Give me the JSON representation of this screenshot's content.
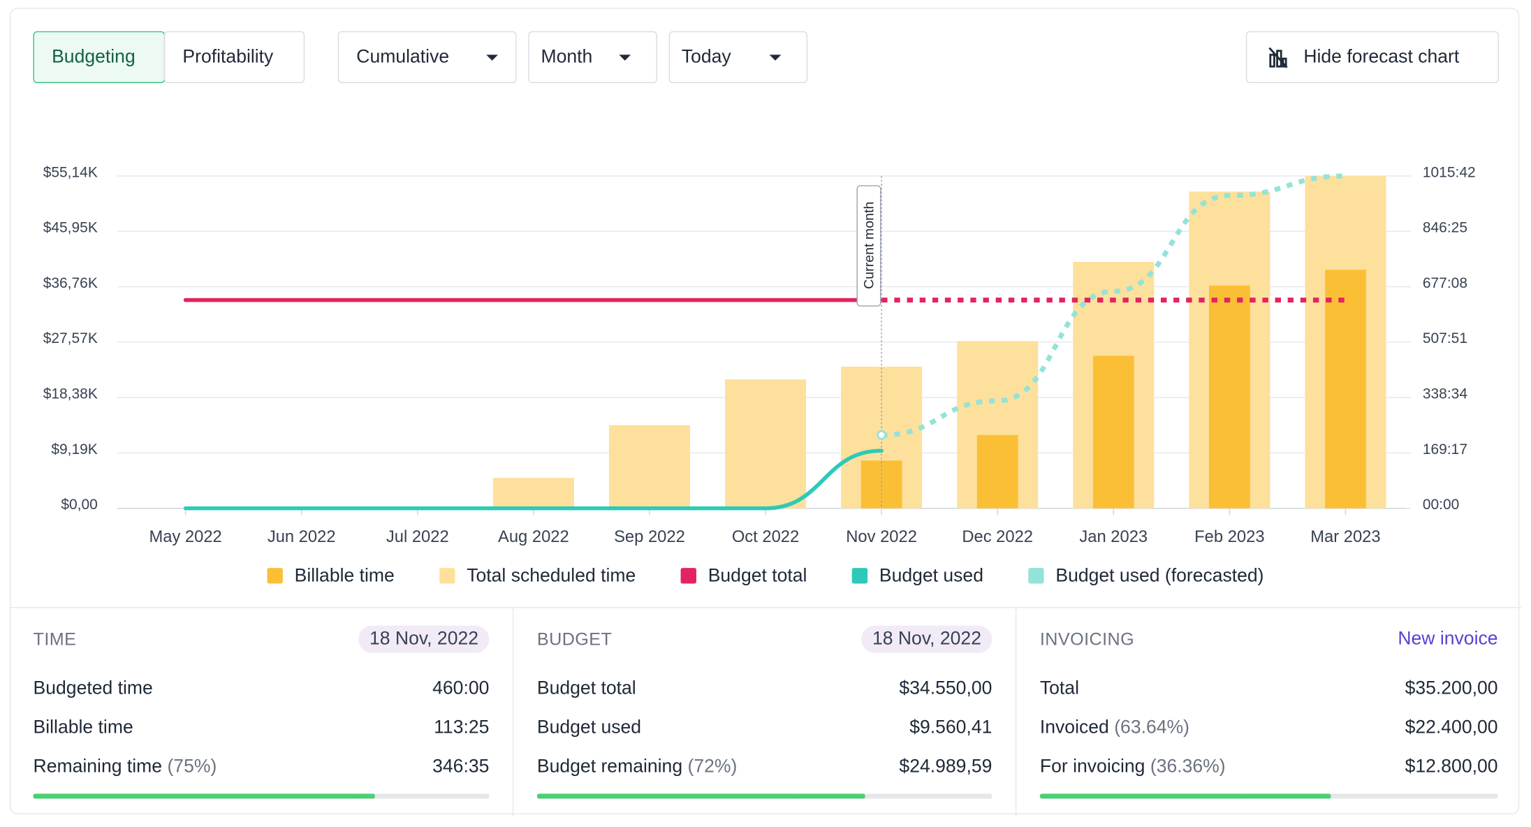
{
  "toolbar": {
    "tabs": [
      "Budgeting",
      "Profitability"
    ],
    "dropdowns": [
      "Cumulative",
      "Month",
      "Today"
    ],
    "forecast_button": "Hide forecast chart"
  },
  "chart_data": {
    "type": "bar",
    "categories": [
      "May 2022",
      "Jun 2022",
      "Jul 2022",
      "Aug 2022",
      "Sep 2022",
      "Oct 2022",
      "Nov 2022",
      "Dec 2022",
      "Jan 2023",
      "Feb 2023",
      "Mar 2023"
    ],
    "series": [
      {
        "name": "Billable time",
        "type": "bar",
        "axis": "y2",
        "color": "#fbbf36",
        "values": [
          0,
          0,
          0,
          0,
          0,
          0,
          146,
          224,
          466,
          681,
          729
        ]
      },
      {
        "name": "Total scheduled time",
        "type": "bar",
        "axis": "y2",
        "color": "#fde09c",
        "values": [
          0,
          0,
          0,
          93,
          254,
          394,
          433,
          511,
          753,
          968,
          1015.7
        ]
      },
      {
        "name": "Budget total",
        "type": "line",
        "color": "#e3245e",
        "values": [
          34550,
          34550,
          34550,
          34550,
          34550,
          34550,
          34550,
          34550,
          34550,
          34550,
          34550
        ]
      },
      {
        "name": "Budget used",
        "type": "line",
        "color": "#2ec9b7",
        "values": [
          0,
          0,
          0,
          0,
          0,
          0,
          9560.41,
          null,
          null,
          null,
          null
        ]
      },
      {
        "name": "Budget used (forecasted)",
        "type": "line",
        "dash": true,
        "color": "#93e3d8",
        "values": [
          null,
          null,
          null,
          null,
          null,
          null,
          12160,
          17840,
          36000,
          51900,
          55140
        ]
      }
    ],
    "ylim": [
      0,
      55140
    ],
    "yticks": [
      {
        "value": 0,
        "label": "$0,00"
      },
      {
        "value": 9190,
        "label": "$9,19K"
      },
      {
        "value": 18380,
        "label": "$18,38K"
      },
      {
        "value": 27570,
        "label": "$27,57K"
      },
      {
        "value": 36760,
        "label": "$36,76K"
      },
      {
        "value": 45950,
        "label": "$45,95K"
      },
      {
        "value": 55140,
        "label": "$55,14K"
      }
    ],
    "y2lim": [
      0,
      1015.7
    ],
    "y2ticks": [
      {
        "value": 0,
        "label": "00:00"
      },
      {
        "value": 169.28,
        "label": "169:17"
      },
      {
        "value": 338.57,
        "label": "338:34"
      },
      {
        "value": 507.85,
        "label": "507:51"
      },
      {
        "value": 677.13,
        "label": "677:08"
      },
      {
        "value": 846.42,
        "label": "846:25"
      },
      {
        "value": 1015.7,
        "label": "1015:42"
      }
    ],
    "grid": true,
    "legend": "bottom",
    "annotations": [
      {
        "text": "Current month",
        "x": "Nov 2022"
      }
    ]
  },
  "panels": [
    {
      "title": "TIME",
      "date": "18 Nov, 2022",
      "rows": [
        {
          "label": "Budgeted time",
          "value": "460:00"
        },
        {
          "label": "Billable time",
          "value": "113:25"
        },
        {
          "label": "Remaining time",
          "note": "(75%)",
          "value": "346:35"
        }
      ],
      "progress": 75
    },
    {
      "title": "BUDGET",
      "date": "18 Nov, 2022",
      "rows": [
        {
          "label": "Budget total",
          "value": "$34.550,00"
        },
        {
          "label": "Budget used",
          "value": "$9.560,41"
        },
        {
          "label": "Budget remaining",
          "note": "(72%)",
          "value": "$24.989,59"
        }
      ],
      "progress": 72
    },
    {
      "title": "INVOICING",
      "link": "New invoice",
      "rows": [
        {
          "label": "Total",
          "value": "$35.200,00"
        },
        {
          "label": "Invoiced",
          "note": "(63.64%)",
          "value": "$22.400,00"
        },
        {
          "label": "For invoicing",
          "note": "(36.36%)",
          "value": "$12.800,00"
        }
      ],
      "progress": 63.64
    }
  ]
}
